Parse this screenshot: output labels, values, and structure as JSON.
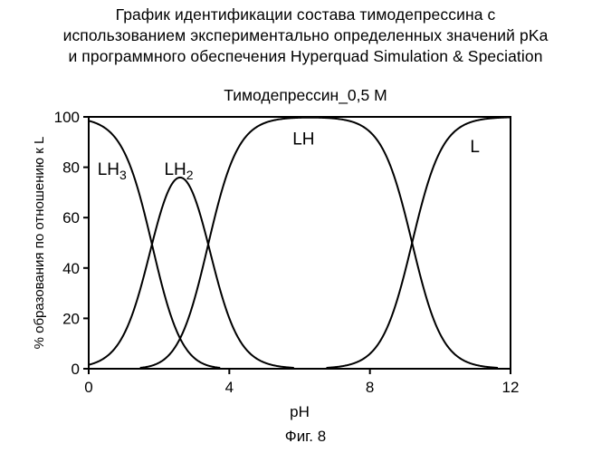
{
  "caption": [
    "График идентификации состава тимодепрессина с",
    "использованием экспериментально определенных значений pKa",
    "и программного обеспечения Hyperquad Simulation & Speciation"
  ],
  "figure_label": "Фиг. 8",
  "chart_data": {
    "type": "line",
    "title": "Тимодепрессин_0,5 М",
    "xlabel": "pH",
    "ylabel": "% образования по отношению к L",
    "xlim": [
      0,
      12
    ],
    "ylim": [
      0,
      100
    ],
    "xticks": [
      0,
      4,
      8,
      12
    ],
    "yticks": [
      0,
      20,
      40,
      60,
      80,
      100
    ],
    "grid": false,
    "pKa": [
      1.8,
      3.4,
      9.2
    ],
    "series": [
      {
        "base": "LH",
        "sub": "3",
        "label_at": [
          0.25,
          77
        ]
      },
      {
        "base": "LH",
        "sub": "2",
        "label_at": [
          2.15,
          77
        ]
      },
      {
        "base": "LH",
        "sub": "",
        "label_at": [
          5.8,
          89
        ]
      },
      {
        "base": "L",
        "sub": "",
        "label_at": [
          10.85,
          86
        ]
      }
    ]
  }
}
